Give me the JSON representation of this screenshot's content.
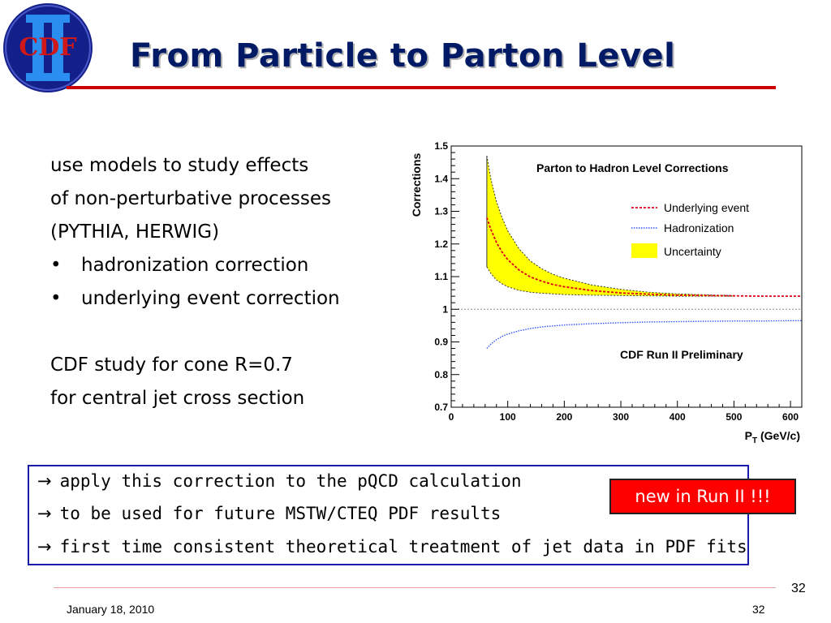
{
  "header": {
    "logo_text": "CDF",
    "logo_numeral": "II",
    "title": "From Particle to Parton Level"
  },
  "bullets": {
    "lines": [
      "use models to study effects",
      "of non-perturbative processes",
      "(PYTHIA, HERWIG)",
      "hadronization correction",
      "underlying event correction",
      "CDF study for cone R=0.7",
      "for central jet cross section"
    ],
    "bullet_glyph": "•"
  },
  "chart_data": {
    "type": "line",
    "title": "Parton to Hadron Level Corrections",
    "annotation": "CDF Run II Preliminary",
    "ylabel": "Corrections",
    "xlabel": "P",
    "xlabel_sub": "T",
    "xlabel_unit": " (GeV/c)",
    "xlim": [
      0,
      620
    ],
    "ylim": [
      0.7,
      1.5
    ],
    "xticks": [
      0,
      100,
      200,
      300,
      400,
      500,
      600
    ],
    "xtick_labels": [
      "0",
      "100",
      "200",
      "300",
      "400",
      "500",
      "600"
    ],
    "yticks": [
      0.7,
      0.8,
      0.9,
      1.0,
      1.1,
      1.2,
      1.3,
      1.4,
      1.5
    ],
    "ytick_labels": [
      "0.7",
      "0.8",
      "0.9",
      "1",
      "1.1",
      "1.2",
      "1.3",
      "1.4",
      "1.5"
    ],
    "reference_line": 1.0,
    "legend_position": "top-right",
    "series": [
      {
        "name": "Underlying event",
        "style": "dotted",
        "color": "#e0001a",
        "x": [
          63,
          70,
          80,
          90,
          100,
          120,
          140,
          160,
          180,
          200,
          250,
          300,
          350,
          400,
          450,
          500,
          550,
          600,
          620
        ],
        "y": [
          1.28,
          1.245,
          1.205,
          1.175,
          1.152,
          1.12,
          1.099,
          1.086,
          1.076,
          1.069,
          1.057,
          1.05,
          1.046,
          1.043,
          1.042,
          1.041,
          1.04,
          1.04,
          1.04
        ]
      },
      {
        "name": "Hadronization",
        "style": "dotted",
        "color": "#3355ff",
        "x": [
          63,
          70,
          80,
          90,
          100,
          120,
          140,
          160,
          180,
          200,
          250,
          300,
          350,
          400,
          450,
          500,
          550,
          600,
          620
        ],
        "y": [
          0.88,
          0.893,
          0.907,
          0.917,
          0.924,
          0.934,
          0.941,
          0.946,
          0.949,
          0.952,
          0.956,
          0.959,
          0.961,
          0.962,
          0.963,
          0.964,
          0.964,
          0.965,
          0.965
        ]
      }
    ],
    "band": {
      "name": "Uncertainty",
      "color": "#ffff00",
      "x": [
        63,
        70,
        80,
        90,
        100,
        120,
        140,
        160,
        180,
        200,
        250,
        300,
        350,
        400,
        450,
        500
      ],
      "upper": [
        1.47,
        1.4,
        1.33,
        1.28,
        1.24,
        1.185,
        1.148,
        1.124,
        1.107,
        1.095,
        1.074,
        1.061,
        1.052,
        1.047,
        1.044,
        1.042
      ],
      "lower": [
        1.13,
        1.11,
        1.09,
        1.078,
        1.069,
        1.058,
        1.052,
        1.049,
        1.047,
        1.045,
        1.043,
        1.042,
        1.041,
        1.04,
        1.04,
        1.04
      ]
    },
    "colors": {
      "axis": "#000000",
      "reference": "#888888",
      "band_edge": "#333333"
    }
  },
  "callout": {
    "arrow_glyph": "→",
    "lines": [
      "apply this correction to the pQCD calculation",
      "to be used for future MSTW/CTEQ PDF results",
      "first time consistent theoretical treatment of jet data in PDF fits"
    ],
    "badge": "new in Run II !!!"
  },
  "footer": {
    "date": "January 18, 2010",
    "page_number": "32",
    "slide_number": "32"
  }
}
